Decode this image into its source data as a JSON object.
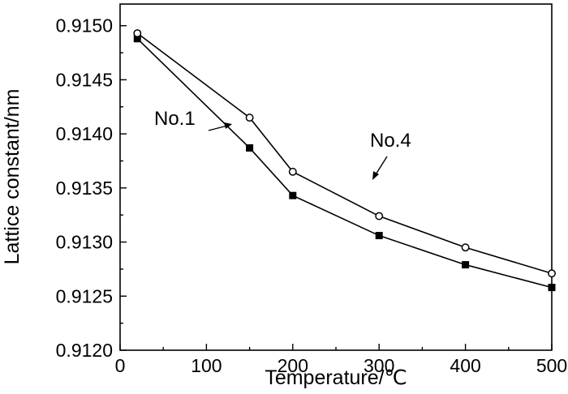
{
  "chart_data": {
    "type": "line",
    "xlabel": "Temperature/℃",
    "ylabel": "Lattice constant/nm",
    "xlim": [
      0,
      500
    ],
    "ylim": [
      0.912,
      0.9152
    ],
    "xticks": [
      0,
      100,
      200,
      300,
      400,
      500
    ],
    "xtick_labels": [
      "0",
      "100",
      "200",
      "300",
      "400",
      "500"
    ],
    "yticks": [
      0.912,
      0.9125,
      0.913,
      0.9135,
      0.914,
      0.9145,
      0.915
    ],
    "ytick_labels": [
      "0.9120",
      "0.9125",
      "0.9130",
      "0.9135",
      "0.9140",
      "0.9145",
      "0.9150"
    ],
    "grid": false,
    "series": [
      {
        "name": "No.1",
        "marker": "filled-square",
        "x": [
          20,
          150,
          200,
          300,
          400,
          500
        ],
        "values": [
          0.91488,
          0.91387,
          0.91343,
          0.91306,
          0.91279,
          0.91258
        ]
      },
      {
        "name": "No.4",
        "marker": "open-circle",
        "x": [
          20,
          150,
          200,
          300,
          400,
          500
        ],
        "values": [
          0.91493,
          0.91415,
          0.91365,
          0.91324,
          0.91295,
          0.91271
        ]
      }
    ],
    "annotations": [
      {
        "text": "No.1",
        "series": "No.1"
      },
      {
        "text": "No.4",
        "series": "No.4"
      }
    ]
  }
}
